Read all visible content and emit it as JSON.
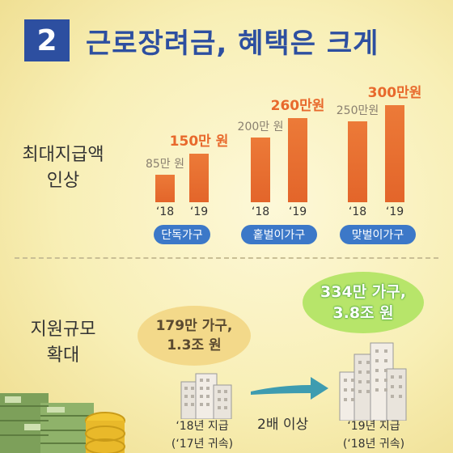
{
  "header": {
    "number": "2",
    "title": "근로장려금, 혜택은 크게"
  },
  "section1": {
    "label_line1": "최대지급액",
    "label_line2": "인상"
  },
  "groups": [
    {
      "name": "단독가구",
      "v18": "85만 원",
      "v19": "150만 원",
      "y18": "‘18",
      "y19": "‘19"
    },
    {
      "name": "홑벌이가구",
      "v18": "200만 원",
      "v19": "260만원",
      "y18": "‘18",
      "y19": "‘19"
    },
    {
      "name": "맞벌이가구",
      "v18": "250만원",
      "v19": "300만원",
      "y18": "‘18",
      "y19": "‘19"
    }
  ],
  "chart_data": {
    "type": "bar",
    "categories": [
      "단독가구",
      "홑벌이가구",
      "맞벌이가구"
    ],
    "series": [
      {
        "name": "‘18",
        "values": [
          85,
          200,
          250
        ]
      },
      {
        "name": "‘19",
        "values": [
          150,
          260,
          300
        ]
      }
    ],
    "ylabel": "",
    "colors": {
      "bar": "#e86e2e",
      "label18": "#8a8070",
      "label19": "#e8692c"
    }
  },
  "section2": {
    "label_line1": "지원규모",
    "label_line2": "확대"
  },
  "before": {
    "line1": "179만 가구,",
    "line2": "1.3조 원",
    "foot1": "‘18년 지급",
    "foot2": "(‘17년 귀속)"
  },
  "after": {
    "line1": "334만 가구,",
    "line2": "3.8조 원",
    "foot1": "‘19년 지급",
    "foot2": "(‘18년 귀속)"
  },
  "arrow_label": "2배 이상",
  "colors": {
    "accent": "#2d4fa0",
    "pill": "#3c78c8",
    "bar": "#e86e2e",
    "green": "#b7e56a"
  },
  "icons": [
    "building-icon",
    "arrow-right-icon",
    "money-stack-icon",
    "coin-icon"
  ]
}
